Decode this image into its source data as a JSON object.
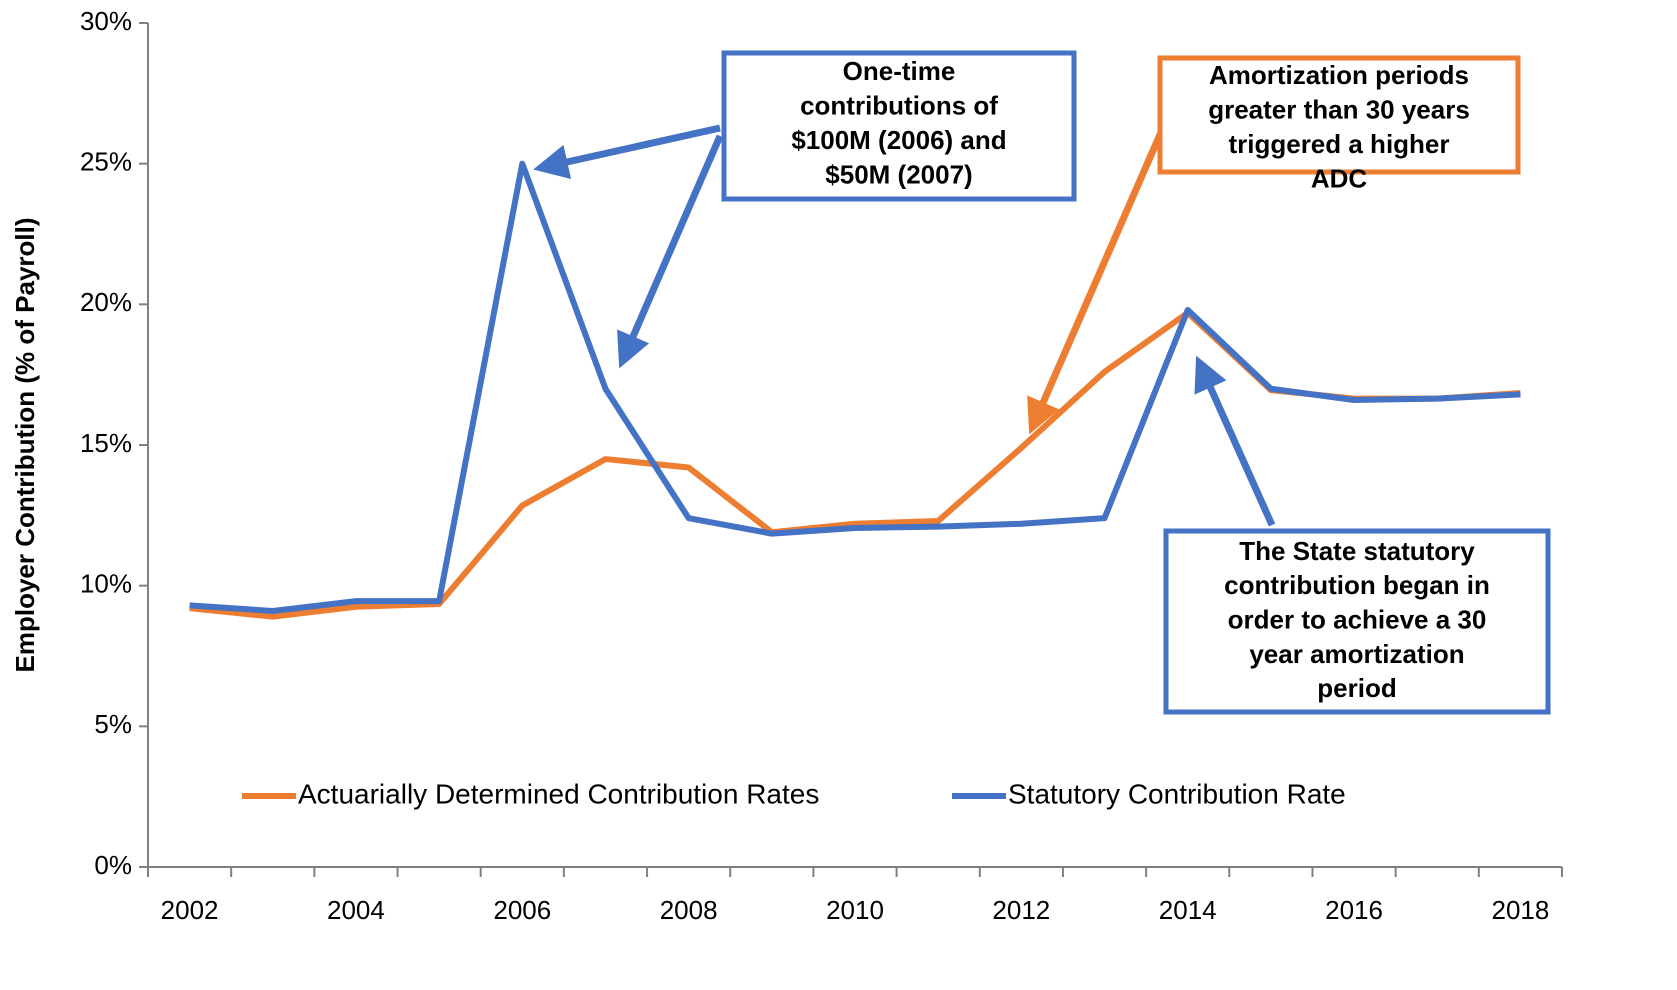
{
  "chart_data": {
    "type": "line",
    "y_label": "Employer Contribution (% of Payroll)",
    "categories": [
      "2002",
      null,
      "2004",
      null,
      "2006",
      null,
      "2008",
      null,
      "2010",
      null,
      "2012",
      null,
      "2014",
      null,
      "2016",
      null,
      "2018"
    ],
    "series": [
      {
        "name": "Actuarially Determined Contribution Rates",
        "color": "#ed7d31",
        "values": [
          9.2,
          8.9,
          9.25,
          9.35,
          12.85,
          14.5,
          14.2,
          11.9,
          12.2,
          12.3,
          14.9,
          17.6,
          19.7,
          16.95,
          16.65,
          16.65,
          16.85
        ]
      },
      {
        "name": "Statutory Contribution Rate",
        "color": "#4472c4",
        "values": [
          9.3,
          9.1,
          9.45,
          9.45,
          25.0,
          17.0,
          12.4,
          11.85,
          12.05,
          12.1,
          12.2,
          12.4,
          19.8,
          17.0,
          16.6,
          16.65,
          16.8
        ]
      }
    ],
    "ylim": [
      0,
      30
    ],
    "yticks": [
      {
        "value": 0,
        "label": "0%"
      },
      {
        "value": 5,
        "label": "5%"
      },
      {
        "value": 10,
        "label": "10%"
      },
      {
        "value": 15,
        "label": "15%"
      },
      {
        "value": 20,
        "label": "20%"
      },
      {
        "value": 25,
        "label": "25%"
      },
      {
        "value": 30,
        "label": "30%"
      }
    ],
    "grid": false,
    "legend": "bottom",
    "annotations": [
      {
        "color": "#4472c4",
        "lines": [
          "One-time",
          "contributions  of",
          "$100M (2006) and",
          "$50M (2007)"
        ]
      },
      {
        "color": "#ed7d31",
        "lines": [
          "Amortization periods",
          "greater than 30 years",
          "triggered a higher",
          "ADC"
        ]
      },
      {
        "color": "#4472c4",
        "lines": [
          "The State statutory",
          "contribution began in",
          "order to achieve a 30",
          "year amortization",
          "period"
        ]
      }
    ]
  }
}
